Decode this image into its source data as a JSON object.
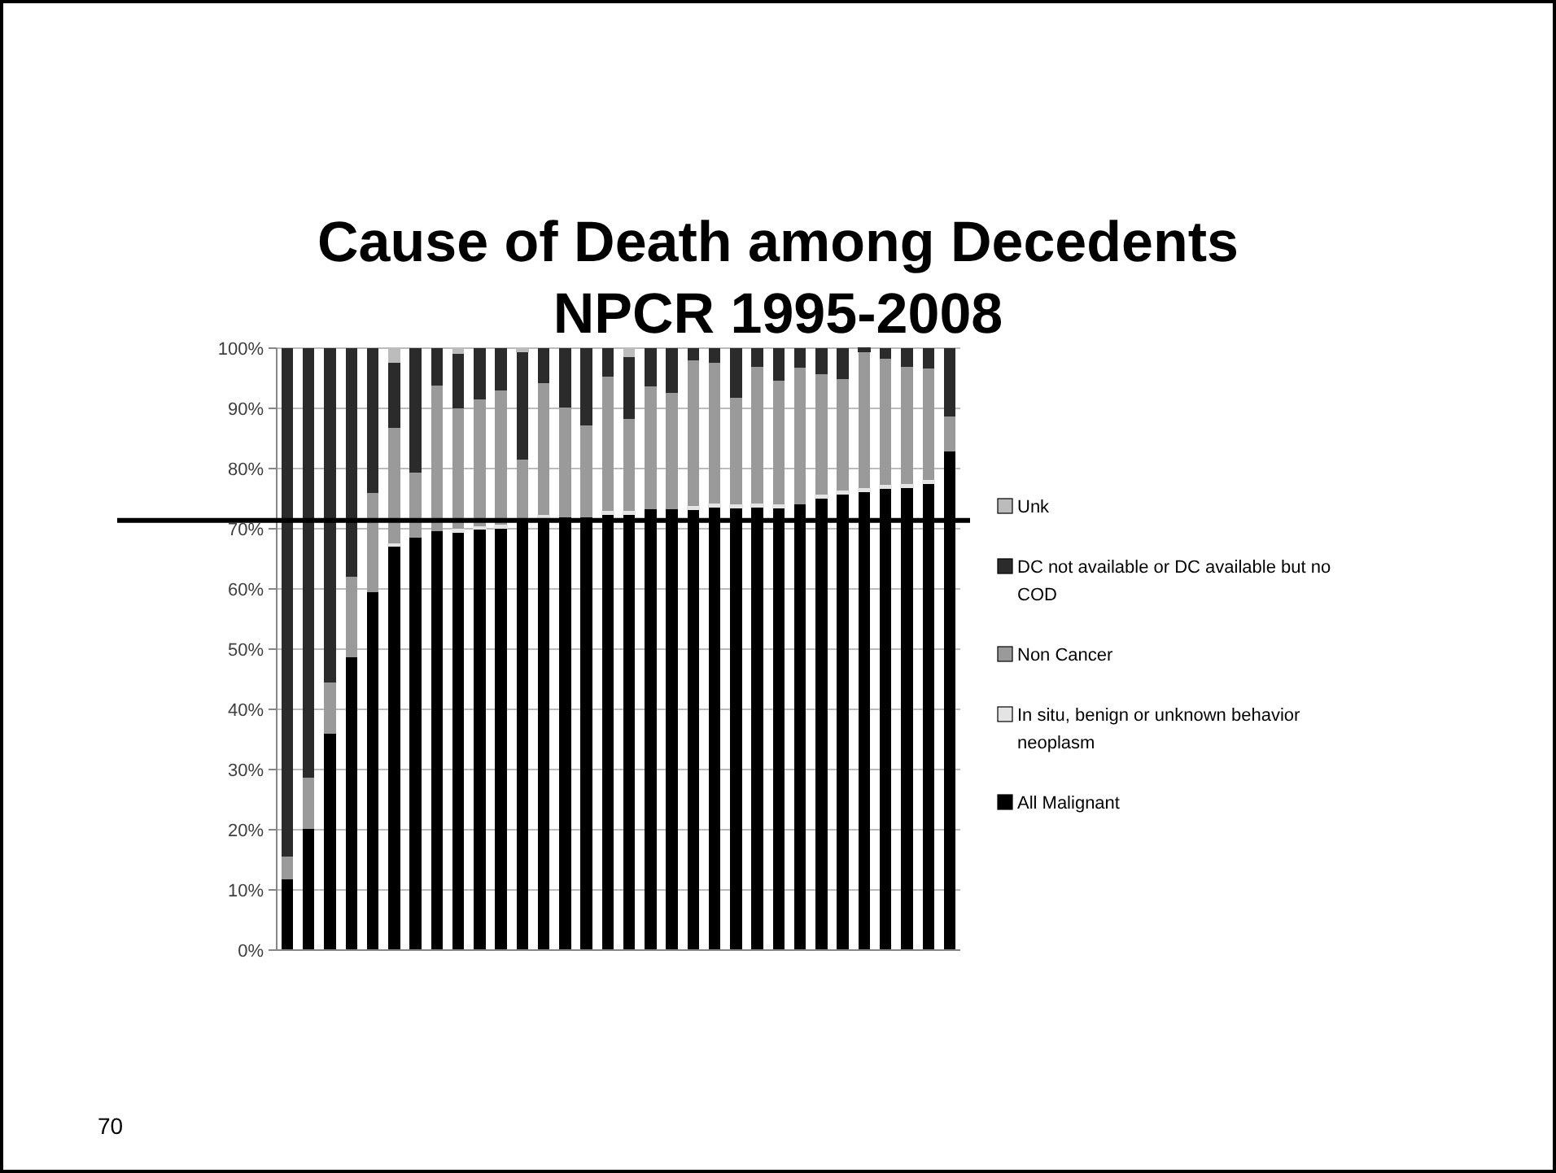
{
  "chart_data": {
    "type": "bar",
    "title": "Cause of Death among Decedents",
    "subtitle": "NPCR 1995-2008",
    "categories": [
      null,
      null,
      null,
      null,
      null,
      null,
      null,
      null,
      null,
      null,
      null,
      null,
      null,
      null,
      null,
      null,
      null,
      null,
      null,
      null,
      null,
      null,
      null,
      null,
      null,
      null,
      null,
      null,
      null,
      null,
      null,
      null
    ],
    "series": [
      {
        "name": "All Malignant",
        "color": "#000000",
        "values": [
          11.7,
          20.1,
          36.0,
          48.7,
          59.5,
          67.1,
          68.5,
          69.6,
          69.4,
          70.0,
          70.1,
          71.2,
          71.7,
          71.9,
          71.9,
          72.4,
          72.4,
          73.2,
          73.2,
          73.3,
          73.7,
          73.5,
          73.7,
          73.5,
          74.1,
          75.1,
          75.8,
          76.2,
          76.7,
          76.9,
          77.6,
          82.9
        ]
      },
      {
        "name": "In situ, benign or unknown behavior neoplasm",
        "color": "#e4e4e4",
        "values": [
          0,
          0,
          0,
          0,
          0,
          0.3,
          0,
          0,
          0.5,
          0.3,
          0.4,
          0,
          0.4,
          0,
          0,
          0.4,
          0.4,
          0,
          0,
          0.4,
          0.4,
          0.4,
          0.4,
          0.4,
          0,
          0.4,
          0.4,
          0.4,
          0.4,
          0.4,
          0.4,
          0
        ]
      },
      {
        "name": "Non Cancer",
        "color": "#9a9a9a",
        "values": [
          3.9,
          8.5,
          8.4,
          13.3,
          16.4,
          19.4,
          10.8,
          24.2,
          20.1,
          21.2,
          22.5,
          10.3,
          22.1,
          18.2,
          15.3,
          22.5,
          15.5,
          20.5,
          19.4,
          24.3,
          23.5,
          17.8,
          22.8,
          20.7,
          22.7,
          20.2,
          18.7,
          22.9,
          21.1,
          19.6,
          18.6,
          5.7
        ]
      },
      {
        "name": "DC not available or DC available but no COD",
        "color": "#2b2b2b",
        "values": [
          84.4,
          71.4,
          55.6,
          38.0,
          24.1,
          10.8,
          20.7,
          6.2,
          9.1,
          8.5,
          7.0,
          18.0,
          5.8,
          9.9,
          12.8,
          4.7,
          10.2,
          6.3,
          7.4,
          2.0,
          2.4,
          8.3,
          3.1,
          5.4,
          3.2,
          4.3,
          5.1,
          0.5,
          1.8,
          3.1,
          3.4,
          11.4
        ]
      },
      {
        "name": "Unk",
        "color": "#bcbcbc",
        "values": [
          0,
          0,
          0,
          0,
          0,
          2.4,
          0,
          0,
          0.9,
          0,
          0,
          0.5,
          0,
          0,
          0,
          0,
          1.5,
          0,
          0,
          0,
          0,
          0,
          0,
          0,
          0,
          0,
          0,
          0,
          0,
          0,
          0,
          0
        ]
      }
    ],
    "stacked": true,
    "ylim": [
      0,
      100
    ],
    "yticks": [
      {
        "value": 0,
        "label": "0%"
      },
      {
        "value": 10,
        "label": "10%"
      },
      {
        "value": 20,
        "label": "20%"
      },
      {
        "value": 30,
        "label": "30%"
      },
      {
        "value": 40,
        "label": "40%"
      },
      {
        "value": 50,
        "label": "50%"
      },
      {
        "value": 60,
        "label": "60%"
      },
      {
        "value": 70,
        "label": "70%"
      },
      {
        "value": 80,
        "label": "80%"
      },
      {
        "value": 90,
        "label": "90%"
      },
      {
        "value": 100,
        "label": "100%"
      }
    ],
    "grid": "y",
    "legend": "right",
    "ref_lines": [
      {
        "axis": "y",
        "value": 71.4,
        "color": "#000000"
      }
    ],
    "annotations": [
      "70"
    ]
  }
}
